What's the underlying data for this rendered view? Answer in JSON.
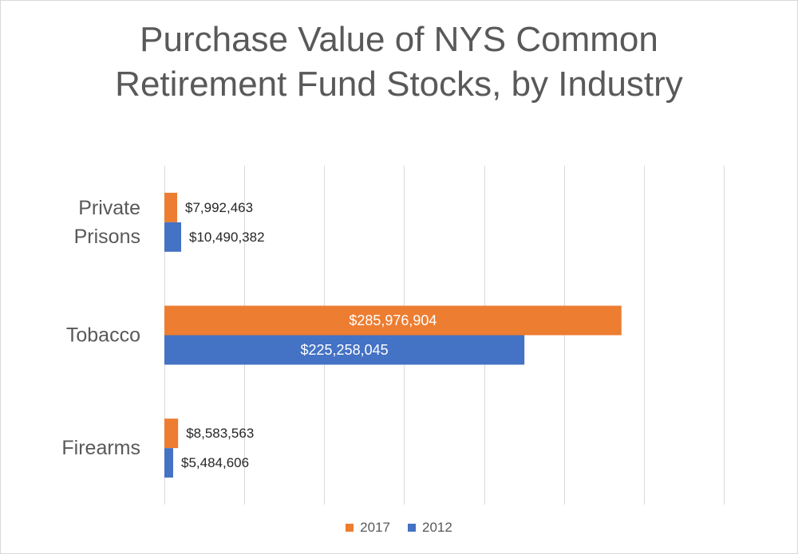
{
  "chart_data": {
    "type": "bar",
    "orientation": "horizontal",
    "title_lines": [
      "Purchase Value of NYS Common",
      "Retirement Fund Stocks, by Industry"
    ],
    "categories": [
      {
        "label_lines": [
          "Private",
          "Prisons"
        ]
      },
      {
        "label_lines": [
          "Tobacco"
        ]
      },
      {
        "label_lines": [
          "Firearms"
        ]
      }
    ],
    "series": [
      {
        "name": "2017",
        "color": "#ed7d31",
        "values": [
          7992463,
          285976904,
          8583563
        ],
        "labels": [
          "$7,992,463",
          "$285,976,904",
          "$8,583,563"
        ]
      },
      {
        "name": "2012",
        "color": "#4472c4",
        "values": [
          10490382,
          225258045,
          5484606
        ],
        "labels": [
          "$10,490,382",
          "$225,258,045",
          "$5,484,606"
        ]
      }
    ],
    "xlim": [
      0,
      350000000
    ],
    "gridlines": true,
    "x_tick_labels_visible": false,
    "legend_position": "bottom"
  }
}
